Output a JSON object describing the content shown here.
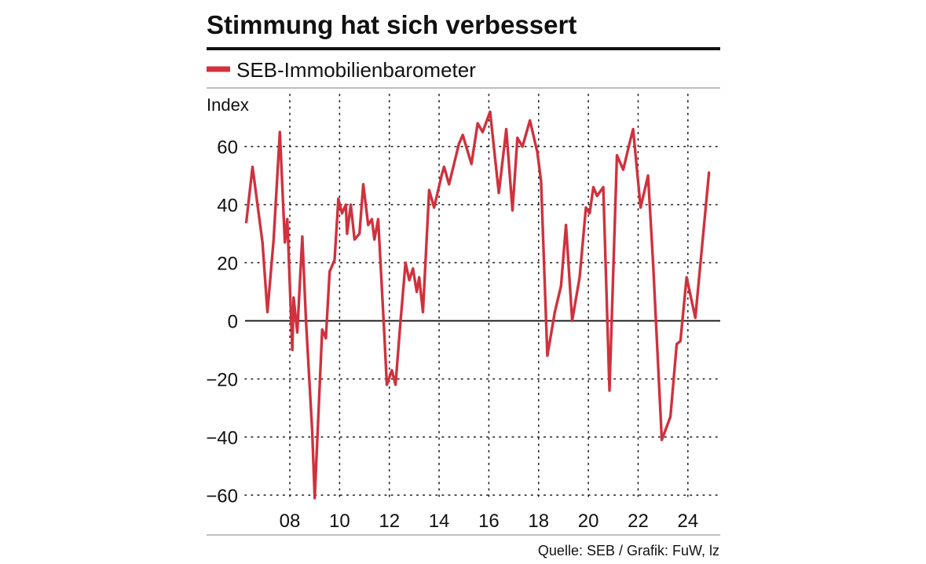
{
  "chart_data": {
    "type": "line",
    "title": "Stimmung hat sich verbessert",
    "series": [
      {
        "name": "SEB-Immobilienbarometer",
        "color": "#d0313d",
        "points": [
          [
            2006.25,
            34
          ],
          [
            2006.5,
            53
          ],
          [
            2006.9,
            27
          ],
          [
            2007.1,
            3
          ],
          [
            2007.35,
            28
          ],
          [
            2007.6,
            65
          ],
          [
            2007.8,
            27
          ],
          [
            2007.9,
            35
          ],
          [
            2008.1,
            -10
          ],
          [
            2008.15,
            8
          ],
          [
            2008.3,
            -4
          ],
          [
            2008.5,
            29
          ],
          [
            2008.65,
            0
          ],
          [
            2008.9,
            -38
          ],
          [
            2009.0,
            -61
          ],
          [
            2009.3,
            -3
          ],
          [
            2009.45,
            -6
          ],
          [
            2009.6,
            17
          ],
          [
            2009.8,
            21
          ],
          [
            2009.95,
            42
          ],
          [
            2010.1,
            37
          ],
          [
            2010.25,
            40
          ],
          [
            2010.3,
            30
          ],
          [
            2010.45,
            40
          ],
          [
            2010.6,
            28
          ],
          [
            2010.8,
            30
          ],
          [
            2010.95,
            47
          ],
          [
            2011.15,
            33
          ],
          [
            2011.3,
            35
          ],
          [
            2011.4,
            28
          ],
          [
            2011.55,
            35
          ],
          [
            2011.8,
            -5
          ],
          [
            2011.9,
            -22
          ],
          [
            2012.1,
            -17
          ],
          [
            2012.25,
            -22
          ],
          [
            2012.45,
            0
          ],
          [
            2012.65,
            20
          ],
          [
            2012.8,
            14
          ],
          [
            2012.95,
            18
          ],
          [
            2013.1,
            10
          ],
          [
            2013.2,
            15
          ],
          [
            2013.35,
            3
          ],
          [
            2013.6,
            45
          ],
          [
            2013.8,
            39
          ],
          [
            2014.1,
            50
          ],
          [
            2014.2,
            53
          ],
          [
            2014.4,
            47
          ],
          [
            2014.8,
            61
          ],
          [
            2014.95,
            64
          ],
          [
            2015.3,
            54
          ],
          [
            2015.55,
            68
          ],
          [
            2015.75,
            65
          ],
          [
            2016.05,
            72
          ],
          [
            2016.4,
            44
          ],
          [
            2016.7,
            66
          ],
          [
            2016.95,
            38
          ],
          [
            2017.15,
            63
          ],
          [
            2017.35,
            60
          ],
          [
            2017.65,
            69
          ],
          [
            2017.95,
            58
          ],
          [
            2018.1,
            48
          ],
          [
            2018.25,
            12
          ],
          [
            2018.35,
            -12
          ],
          [
            2018.65,
            3
          ],
          [
            2018.9,
            12
          ],
          [
            2019.1,
            33
          ],
          [
            2019.35,
            0
          ],
          [
            2019.65,
            15
          ],
          [
            2019.9,
            39
          ],
          [
            2020.05,
            37
          ],
          [
            2020.2,
            46
          ],
          [
            2020.35,
            43
          ],
          [
            2020.6,
            46
          ],
          [
            2020.85,
            -24
          ],
          [
            2021.15,
            57
          ],
          [
            2021.4,
            52
          ],
          [
            2021.65,
            61
          ],
          [
            2021.8,
            66
          ],
          [
            2022.1,
            39
          ],
          [
            2022.4,
            50
          ],
          [
            2022.6,
            20
          ],
          [
            2022.95,
            -41
          ],
          [
            2023.3,
            -33
          ],
          [
            2023.55,
            -8
          ],
          [
            2023.7,
            -7
          ],
          [
            2023.95,
            15
          ],
          [
            2024.3,
            1
          ],
          [
            2024.85,
            51
          ]
        ]
      }
    ],
    "x_range": [
      2006.2,
      2025.3
    ],
    "y_range": [
      -61,
      78
    ],
    "x_ticks": [
      {
        "value": 2008,
        "label": "08"
      },
      {
        "value": 2010,
        "label": "10"
      },
      {
        "value": 2012,
        "label": "12"
      },
      {
        "value": 2014,
        "label": "14"
      },
      {
        "value": 2016,
        "label": "16"
      },
      {
        "value": 2018,
        "label": "18"
      },
      {
        "value": 2020,
        "label": "20"
      },
      {
        "value": 2022,
        "label": "22"
      },
      {
        "value": 2024,
        "label": "24"
      }
    ],
    "y_ticks": [
      {
        "value": 60,
        "label": "60"
      },
      {
        "value": 40,
        "label": "40"
      },
      {
        "value": 20,
        "label": "20"
      },
      {
        "value": 0,
        "label": "0"
      },
      {
        "value": -20,
        "label": "−20"
      },
      {
        "value": -40,
        "label": "−40"
      },
      {
        "value": -60,
        "label": "−60"
      }
    ],
    "ylabel": "Index",
    "legend_position": "top-left",
    "grid": "dotted",
    "zero_line": true,
    "source": "Quelle: SEB / Grafik: FuW, lz"
  }
}
